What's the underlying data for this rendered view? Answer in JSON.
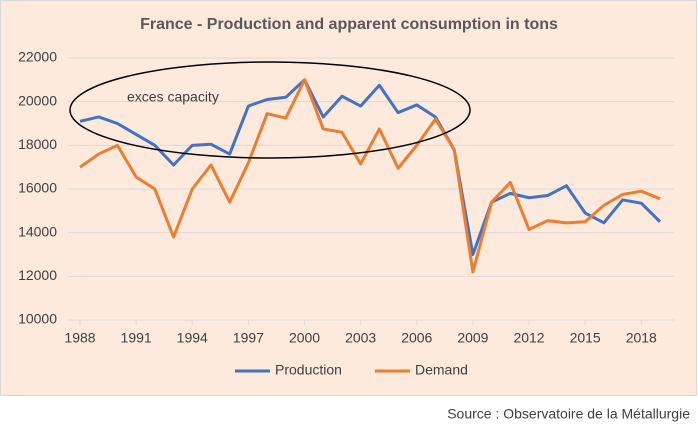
{
  "chart_data": {
    "type": "line",
    "title": "France - Production and apparent consumption in tons",
    "x": [
      1988,
      1989,
      1990,
      1991,
      1992,
      1993,
      1994,
      1995,
      1996,
      1997,
      1998,
      1999,
      2000,
      2001,
      2002,
      2003,
      2004,
      2005,
      2006,
      2007,
      2008,
      2009,
      2010,
      2011,
      2012,
      2013,
      2014,
      2015,
      2016,
      2017,
      2018,
      2019
    ],
    "series": [
      {
        "name": "Production",
        "color": "#4472c4",
        "values": [
          19100,
          19300,
          19000,
          18500,
          18000,
          17100,
          18000,
          18050,
          17600,
          19800,
          20100,
          20200,
          21000,
          19300,
          20250,
          19800,
          20750,
          19500,
          19850,
          19300,
          17800,
          13000,
          15400,
          15800,
          15600,
          15700,
          16150,
          14900,
          14450,
          15500,
          15350,
          14500
        ]
      },
      {
        "name": "Demand",
        "color": "#ed7d31",
        "values": [
          17000,
          17600,
          18000,
          16550,
          16000,
          13800,
          16000,
          17100,
          15400,
          17200,
          19450,
          19250,
          21000,
          18750,
          18600,
          17150,
          18750,
          16950,
          18000,
          19200,
          17800,
          12200,
          15400,
          16300,
          14150,
          14550,
          14450,
          14500,
          15250,
          15750,
          15900,
          15550
        ]
      }
    ],
    "xlim": [
      1988,
      2019
    ],
    "xticks": [
      1988,
      1991,
      1994,
      1997,
      2000,
      2003,
      2006,
      2009,
      2012,
      2015,
      2018
    ],
    "ylim": [
      10000,
      22000
    ],
    "yticks": [
      10000,
      12000,
      14000,
      16000,
      18000,
      20000,
      22000
    ],
    "grid": true,
    "legend": "bottom",
    "annotation": "exces capacity",
    "source": "Source : Observatoire de la Métallurgie"
  }
}
